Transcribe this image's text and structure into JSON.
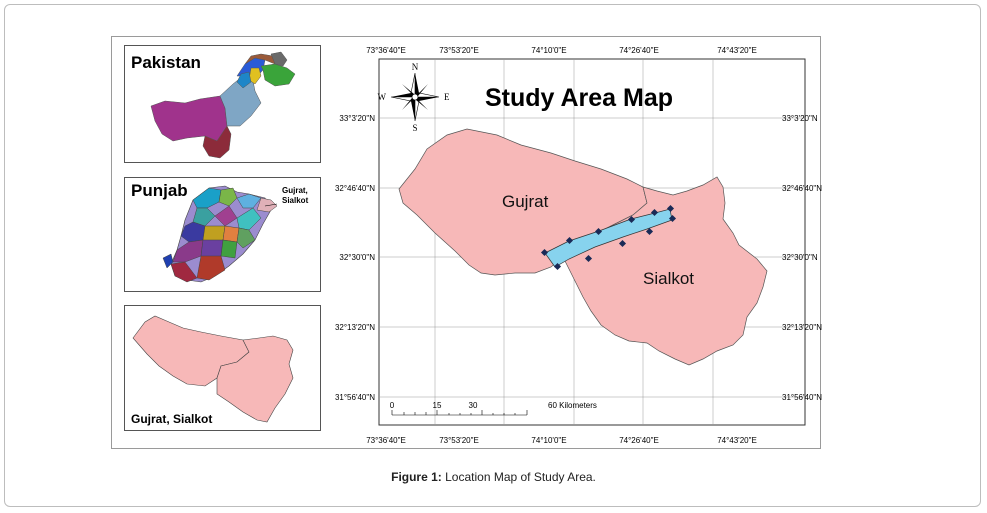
{
  "inset_panels": {
    "pakistan": {
      "title": "Pakistan"
    },
    "punjab": {
      "title": "Punjab",
      "callout_line1": "Gujrat,",
      "callout_line2": "Sialkot"
    },
    "districts": {
      "title": "Gujrat, Sialkot"
    }
  },
  "main_map": {
    "title": "Study Area Map",
    "top_longitudes": [
      "73°36'40\"E",
      "73°53'20\"E",
      "74°10'0\"E",
      "74°26'40\"E",
      "74°43'20\"E"
    ],
    "bottom_longitudes": [
      "73°36'40\"E",
      "73°53'20\"E",
      "74°10'0\"E",
      "74°26'40\"E",
      "74°43'20\"E"
    ],
    "left_latitudes": [
      "33°3'20\"N",
      "32°46'40\"N",
      "32°30'0\"N",
      "32°13'20\"N",
      "31°56'40\"N"
    ],
    "right_latitudes": [
      "33°3'20\"N",
      "32°46'40\"N",
      "32°30'0\"N",
      "32°13'20\"N",
      "31°56'40\"N"
    ],
    "district_labels": {
      "gujrat": "Gujrat",
      "sialkot": "Sialkot"
    },
    "compass": {
      "n": "N",
      "s": "S",
      "e": "E",
      "w": "W"
    },
    "scale_bar": {
      "ticks": [
        "0",
        "15",
        "30",
        "60 Kilometers"
      ]
    },
    "colors": {
      "district_fill": "#f7b8b8",
      "study_zone_fill": "#87d3ee",
      "sample_points": "#1a2a57"
    }
  },
  "caption": {
    "label": "Figure 1:",
    "text": "Location Map of Study Area."
  }
}
